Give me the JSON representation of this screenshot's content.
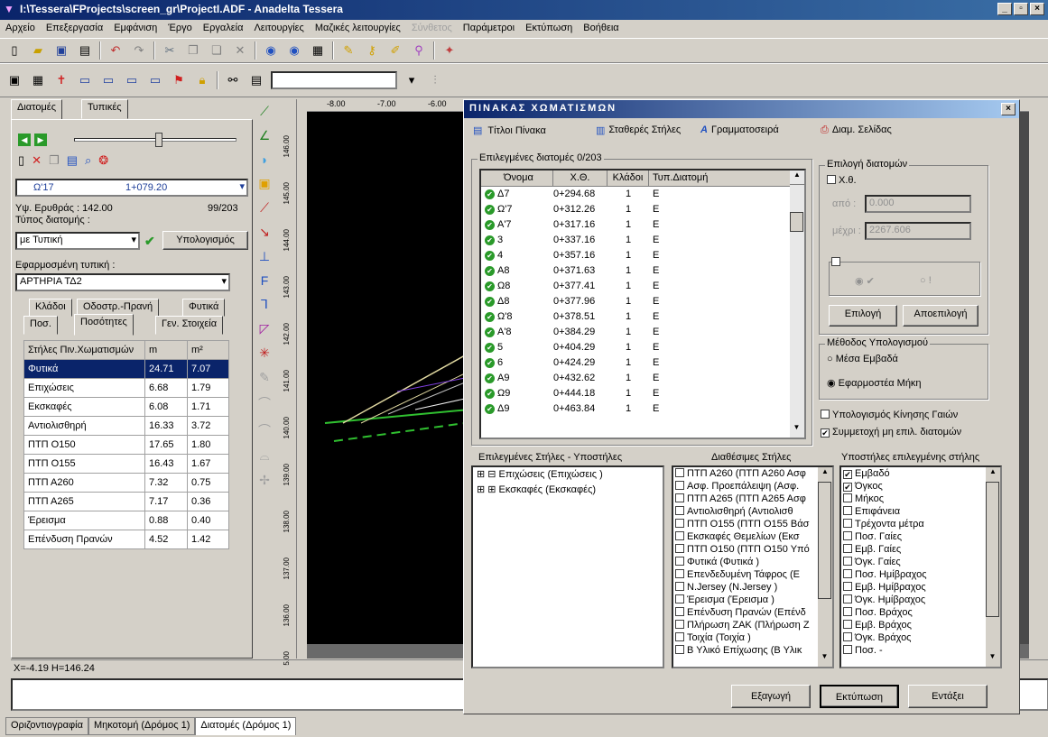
{
  "window": {
    "title": "I:\\Tessera\\FProjects\\screen_gr\\ProjectI.ADF - Anadelta Tessera"
  },
  "menu": [
    "Αρχείο",
    "Επεξεργασία",
    "Εμφάνιση",
    "Έργο",
    "Εργαλεία",
    "Λειτουργίες",
    "Μαζικές λειτουργίες",
    "Σύνθετος",
    "Παράμετροι",
    "Εκτύπωση",
    "Βοήθεια"
  ],
  "left": {
    "tabs": [
      "Διατομές",
      "Τυπικές"
    ],
    "section_value": "Ω'17",
    "station_value": "1+079.20",
    "red_elev_label": "Υψ. Ερυθράς : 142.00",
    "counter": "99/203",
    "type_label": "Τύπος διατομής :",
    "type_value": "με Τυπική",
    "calc_button": "Υπολογισμός",
    "applied_label": "Εφαρμοσμένη τυπική :",
    "applied_value": "ΑΡΤΗΡΙΑ ΤΔ2",
    "subtabs_row1": [
      "Κλάδοι",
      "Οδοστρ.-Πρανή",
      "Φυτικά"
    ],
    "subtabs_row2": [
      "Ποσ.",
      "Ποσότητες",
      "Γεν. Στοιχεία"
    ],
    "grid_headers": [
      "Στήλες Πιν.Χωματισμών",
      "m",
      "m²"
    ],
    "grid_rows": [
      [
        "Φυτικά",
        "24.71",
        "7.07"
      ],
      [
        "Επιχώσεις",
        "6.68",
        "1.79"
      ],
      [
        "Εκσκαφές",
        "6.08",
        "1.71"
      ],
      [
        "Αντιολισθηρή",
        "16.33",
        "3.72"
      ],
      [
        "ΠΤΠ Ο150",
        "17.65",
        "1.80"
      ],
      [
        "ΠΤΠ Ο155",
        "16.43",
        "1.67"
      ],
      [
        "ΠΤΠ Α260",
        "7.32",
        "0.75"
      ],
      [
        "ΠΤΠ Α265",
        "7.17",
        "0.36"
      ],
      [
        "Έρεισμα",
        "0.88",
        "0.40"
      ],
      [
        "Επένδυση Πρανών",
        "4.52",
        "1.42"
      ]
    ]
  },
  "ruler": {
    "top": [
      "-8.00",
      "-7.00",
      "-6.00"
    ],
    "left": [
      "146.00",
      "145.00",
      "144.00",
      "143.00",
      "142.00",
      "141.00",
      "140.00",
      "139.00",
      "138.00",
      "137.00",
      "136.00",
      "5.00"
    ]
  },
  "status": {
    "coords": "X=-4.19 H=146.24"
  },
  "bottom_tabs": [
    "Οριζοντιογραφία",
    "Μηκοτομή (Δρόμος 1)",
    "Διατομές (Δρόμος 1)"
  ],
  "dialog": {
    "title": "ΠΙΝΑΚΑΣ ΧΩΜΑΤΙΣΜΩΝ",
    "toolbar": [
      "Τίτλοι Πίνακα",
      "Σταθερές Στήλες",
      "Γραμματοσειρά",
      "Διαμ. Σελίδας"
    ],
    "selected_label": "Επιλεγμένες διατομές 0/203",
    "sections_headers": [
      "Όνομα",
      "Χ.Θ.",
      "Κλάδοι",
      "Τυπ.Διατομή"
    ],
    "sections": [
      [
        "Δ7",
        "0+294.68",
        "1",
        "Ε"
      ],
      [
        "Ω'7",
        "0+312.26",
        "1",
        "Ε"
      ],
      [
        "Α'7",
        "0+317.16",
        "1",
        "Ε"
      ],
      [
        "3",
        "0+337.16",
        "1",
        "Ε"
      ],
      [
        "4",
        "0+357.16",
        "1",
        "Ε"
      ],
      [
        "Α8",
        "0+371.63",
        "1",
        "Ε"
      ],
      [
        "Ω8",
        "0+377.41",
        "1",
        "Ε"
      ],
      [
        "Δ8",
        "0+377.96",
        "1",
        "Ε"
      ],
      [
        "Ω'8",
        "0+378.51",
        "1",
        "Ε"
      ],
      [
        "Α'8",
        "0+384.29",
        "1",
        "Ε"
      ],
      [
        "5",
        "0+404.29",
        "1",
        "Ε"
      ],
      [
        "6",
        "0+424.29",
        "1",
        "Ε"
      ],
      [
        "Α9",
        "0+432.62",
        "1",
        "Ε"
      ],
      [
        "Ω9",
        "0+444.18",
        "1",
        "Ε"
      ],
      [
        "Δ9",
        "0+463.84",
        "1",
        "Ε"
      ]
    ],
    "choice_group": "Επιλογή διατομών",
    "chk_xth": "Χ.θ.",
    "from_label": "από :",
    "from_value": "0.000",
    "to_label": "μέχρι :",
    "to_value": "2267.606",
    "select_btn": "Επιλογή",
    "deselect_btn": "Αποεπιλογή",
    "method_group": "Μέθοδος Υπολογισμού",
    "method_opt1": "Μέσα Εμβαδά",
    "method_opt2": "Εφαρμοστέα Μήκη",
    "chk_mass": "Υπολογισμός Κίνησης Γαιών",
    "chk_part": "Συμμετοχή μη επιλ. διατομών",
    "cols_label": "Επιλεγμένες Στήλες - Υποστήλες",
    "cols_tree": [
      "Επιχώσεις (Επιχώσεις )",
      "Εκσκαφές (Εκσκαφές)"
    ],
    "avail_label": "Διαθέσιμες Στήλες",
    "avail": [
      "ΠΤΠ Α260 (ΠΤΠ Α260 Ασφ",
      "Ασφ. Προεπάλειψη (Ασφ.",
      "ΠΤΠ Α265 (ΠΤΠ Α265 Ασφ",
      "Αντιολισθηρή (Αντιολισθ",
      "ΠΤΠ Ο155 (ΠΤΠ Ο155 Βάσ",
      "Εκσκαφές Θεμελίων (Εκσ",
      "ΠΤΠ Ο150 (ΠΤΠ Ο150 Υπό",
      "Φυτικά (Φυτικά )",
      "Επενδεδυμένη Τάφρος (Ε",
      "N.Jersey (N.Jersey )",
      "Έρεισμα (Έρεισμα )",
      "Επένδυση Πρανών (Επένδ",
      "Πλήρωση ΖΑΚ (Πλήρωση Ζ",
      "Τοιχία (Τοιχία )",
      "Β Υλικό Επίχωσης (Β Υλικ"
    ],
    "sub_label": "Υποστήλες επιλεγμένης στήλης",
    "subcols": [
      [
        "Εμβαδό",
        true
      ],
      [
        "Όγκος",
        true
      ],
      [
        "Μήκος",
        false
      ],
      [
        "Επιφάνεια",
        false
      ],
      [
        "Τρέχοντα μέτρα",
        false
      ],
      [
        "Ποσ. Γαίες",
        false
      ],
      [
        "Εμβ. Γαίες",
        false
      ],
      [
        "Όγκ. Γαίες",
        false
      ],
      [
        "Ποσ. Ημίβραχος",
        false
      ],
      [
        "Εμβ. Ημίβραχος",
        false
      ],
      [
        "Όγκ. Ημίβραχος",
        false
      ],
      [
        "Ποσ. Βράχος",
        false
      ],
      [
        "Εμβ. Βράχος",
        false
      ],
      [
        "Όγκ. Βράχος",
        false
      ],
      [
        "Ποσ.  -",
        false
      ]
    ],
    "btn_export": "Εξαγωγή",
    "btn_print": "Εκτύπωση",
    "btn_ok": "Εντάξει"
  }
}
